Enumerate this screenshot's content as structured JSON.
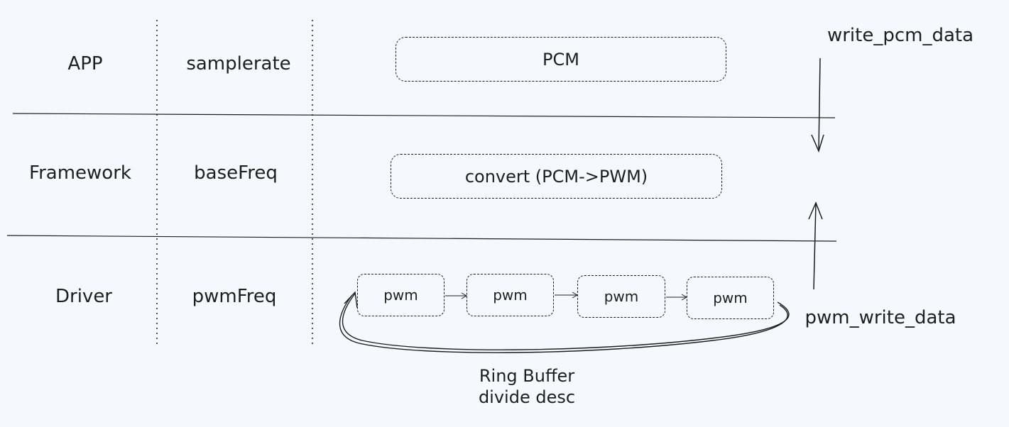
{
  "layers": [
    {
      "name": "APP",
      "param": "samplerate"
    },
    {
      "name": "Framework",
      "param": "baseFreq"
    },
    {
      "name": "Driver",
      "param": "pwmFreq"
    }
  ],
  "boxes": {
    "app": "PCM",
    "framework": "convert (PCM->PWM)",
    "driver": [
      "pwm",
      "pwm",
      "pwm",
      "pwm"
    ]
  },
  "arrows": {
    "down_label": "write_pcm_data",
    "up_label": "pwm_write_data"
  },
  "ring": {
    "line1": "Ring Buffer",
    "line2": "divide desc"
  }
}
